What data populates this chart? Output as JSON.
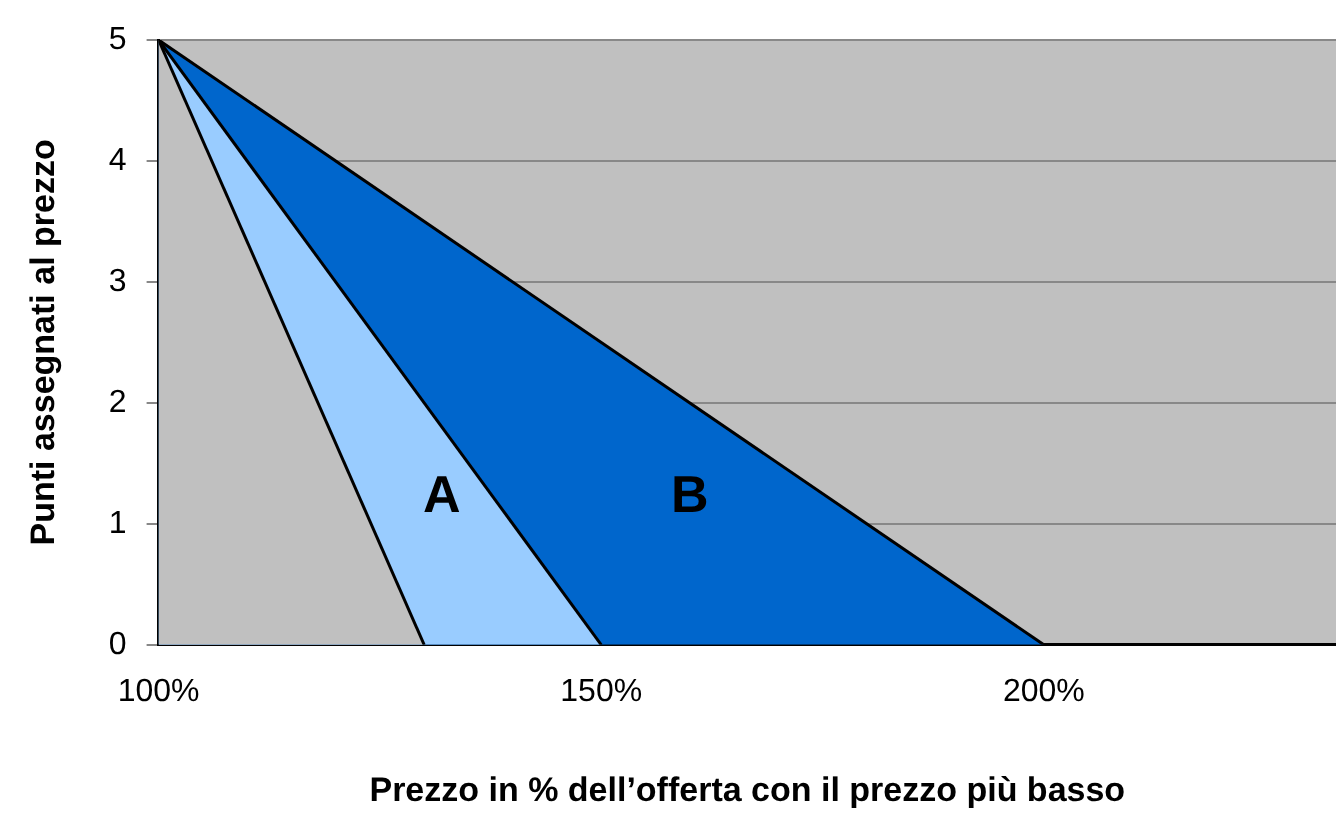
{
  "chart_data": {
    "type": "area",
    "xlabel": "Prezzo in % dell’offerta con il prezzo più basso",
    "ylabel": "Punti assegnati al prezzo",
    "series": [
      {
        "name": "B",
        "color": "#0066cc",
        "x": [
          100,
          200
        ],
        "values": [
          5,
          0
        ]
      },
      {
        "name": "A",
        "color": "#99ccff",
        "x": [
          100,
          150
        ],
        "values": [
          5,
          0
        ]
      },
      {
        "color": "#c0c0c0",
        "x": [
          100,
          130
        ],
        "values": [
          5,
          0
        ]
      }
    ],
    "xlim": [
      100,
      233
    ],
    "xticks": [
      {
        "value": 100,
        "label": "100%"
      },
      {
        "value": 150,
        "label": "150%"
      },
      {
        "value": 200,
        "label": "200%"
      }
    ],
    "ylim": [
      0,
      5
    ],
    "yticks": [
      0,
      1,
      2,
      3,
      4,
      5
    ],
    "grid": "y",
    "legend": false
  }
}
